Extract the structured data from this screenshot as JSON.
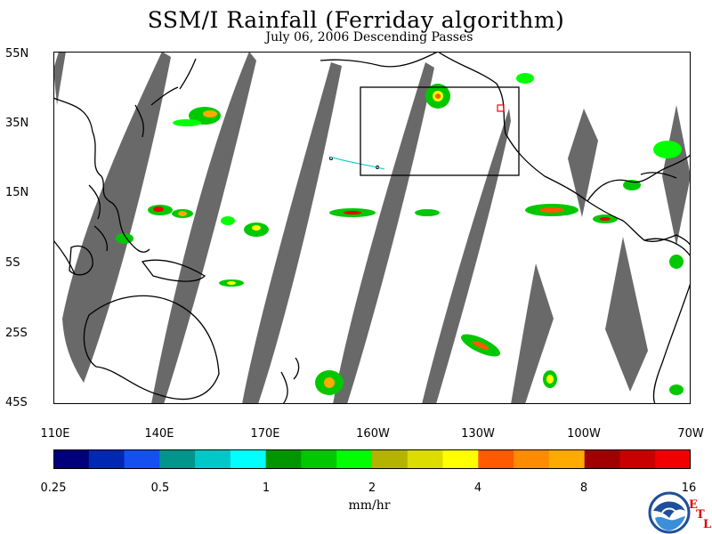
{
  "title": "SSM/I Rainfall (Ferriday algorithm)",
  "subtitle": "July 06, 2006  Descending Passes",
  "lat_labels": [
    "55N",
    "35N",
    "15N",
    "5S",
    "25S",
    "45S"
  ],
  "lon_labels": [
    "110E",
    "140E",
    "170E",
    "160W",
    "130W",
    "100W",
    "70W"
  ],
  "colorbar": {
    "tick_labels": [
      "0.25",
      "0.5",
      "1",
      "2",
      "4",
      "8",
      "16"
    ],
    "units": "mm/hr",
    "colors": [
      "#00007a",
      "#0028b4",
      "#1450f0",
      "#00968c",
      "#00c8c8",
      "#00ffff",
      "#009600",
      "#00c800",
      "#00ff00",
      "#b4b400",
      "#dcdc00",
      "#ffff00",
      "#ff5a00",
      "#ff8c00",
      "#ffaa00",
      "#a00000",
      "#c80000",
      "#f00000"
    ]
  },
  "logo": {
    "name": "NOAA",
    "etl_letters": [
      "E",
      "T",
      "L"
    ]
  },
  "colors": {
    "swath_gap": "#696969",
    "coast": "#000000",
    "box": "#000000",
    "marker": "#ff0000"
  }
}
